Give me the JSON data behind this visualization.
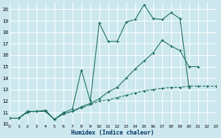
{
  "xlabel": "Humidex (Indice chaleur)",
  "bg_color": "#cce8ee",
  "grid_color": "#ffffff",
  "line_color": "#1a6b5a",
  "xlim": [
    0,
    23
  ],
  "ylim": [
    10,
    20.6
  ],
  "xticks": [
    0,
    1,
    2,
    3,
    4,
    5,
    6,
    7,
    8,
    9,
    10,
    11,
    12,
    13,
    14,
    15,
    16,
    17,
    18,
    19,
    20,
    21,
    22,
    23
  ],
  "yticks": [
    10,
    11,
    12,
    13,
    14,
    15,
    16,
    17,
    18,
    19,
    20
  ],
  "line1_x": [
    0,
    1,
    2,
    3,
    4,
    5,
    6,
    7,
    8,
    9,
    10,
    11,
    12,
    13,
    14,
    15,
    16,
    17,
    18,
    19,
    20
  ],
  "line1_y": [
    10.5,
    10.5,
    11.1,
    11.1,
    11.2,
    10.4,
    11.0,
    11.3,
    14.7,
    12.0,
    18.8,
    17.2,
    17.2,
    18.9,
    19.1,
    20.4,
    19.2,
    19.1,
    19.7,
    19.2,
    13.2
  ],
  "line2_x": [
    0,
    1,
    2,
    3,
    4,
    5,
    6,
    7,
    8,
    9,
    10,
    11,
    12,
    13,
    14,
    15,
    16,
    17,
    18,
    19,
    20,
    21,
    22,
    23
  ],
  "line2_y": [
    10.5,
    10.5,
    11.1,
    11.1,
    11.1,
    10.4,
    10.9,
    11.1,
    11.5,
    11.8,
    12.2,
    12.8,
    13.2,
    14.0,
    14.8,
    15.5,
    16.2,
    17.3,
    16.8,
    16.4,
    15.0,
    15.0,
    null,
    null
  ],
  "line3_x": [
    0,
    1,
    2,
    3,
    4,
    5,
    6,
    7,
    8,
    9,
    10,
    11,
    12,
    13,
    14,
    15,
    16,
    17,
    18,
    19,
    20,
    21,
    22,
    23
  ],
  "line3_y": [
    10.5,
    10.5,
    11.0,
    11.1,
    11.1,
    10.4,
    10.9,
    11.1,
    11.4,
    11.7,
    12.0,
    12.1,
    12.3,
    12.5,
    12.7,
    12.9,
    13.0,
    13.1,
    13.2,
    13.2,
    13.3,
    13.3,
    13.3,
    13.3
  ]
}
